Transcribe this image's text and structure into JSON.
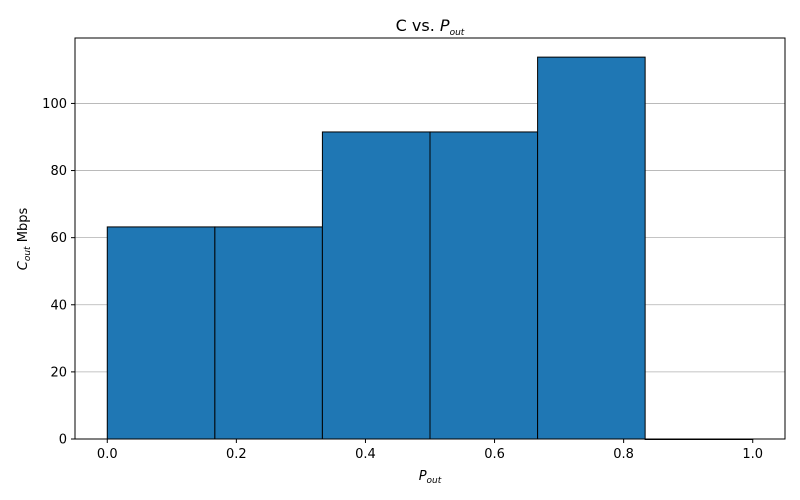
{
  "chart_data": {
    "type": "bar",
    "title_main": "C vs. ",
    "title_var": "P",
    "title_sub": "out",
    "xlabel_var": "P",
    "xlabel_sub": "out",
    "ylabel_var": "C",
    "ylabel_sub": "out",
    "ylabel_unit": " Mbps",
    "bins": [
      {
        "x0": 0.0,
        "x1": 0.1667,
        "value": 63.2
      },
      {
        "x0": 0.1667,
        "x1": 0.3333,
        "value": 63.2
      },
      {
        "x0": 0.3333,
        "x1": 0.5,
        "value": 91.5
      },
      {
        "x0": 0.5,
        "x1": 0.6667,
        "value": 91.5
      },
      {
        "x0": 0.6667,
        "x1": 0.8333,
        "value": 113.8
      },
      {
        "x0": 0.8333,
        "x1": 1.0,
        "value": 0
      }
    ],
    "xlim": [
      -0.05,
      1.05
    ],
    "ylim": [
      0,
      119.5
    ],
    "xticks": [
      0.0,
      0.2,
      0.4,
      0.6,
      0.8,
      1.0
    ],
    "xtick_labels": [
      "0.0",
      "0.2",
      "0.4",
      "0.6",
      "0.8",
      "1.0"
    ],
    "yticks": [
      0,
      20,
      40,
      60,
      80,
      100
    ],
    "ytick_labels": [
      "0",
      "20",
      "40",
      "60",
      "80",
      "100"
    ],
    "grid": "y",
    "bar_color": "#1f77b4",
    "edge_color": "#000000"
  }
}
